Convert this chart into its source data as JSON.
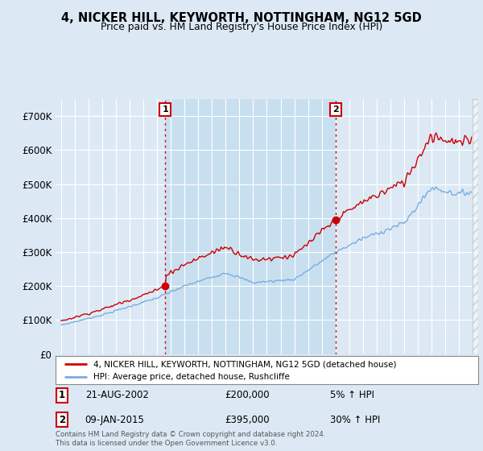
{
  "title": "4, NICKER HILL, KEYWORTH, NOTTINGHAM, NG12 5GD",
  "subtitle": "Price paid vs. HM Land Registry's House Price Index (HPI)",
  "bg_color": "#dce9f5",
  "plot_bg_color": "#dce9f5",
  "plot_bg_highlight": "#c8dff0",
  "grid_color": "#ffffff",
  "sale1_date": "21-AUG-2002",
  "sale1_price": 200000,
  "sale1_label": "1",
  "sale1_hpi_pct": "5% ↑ HPI",
  "sale2_date": "09-JAN-2015",
  "sale2_price": 395000,
  "sale2_label": "2",
  "sale2_hpi_pct": "30% ↑ HPI",
  "legend_house": "4, NICKER HILL, KEYWORTH, NOTTINGHAM, NG12 5GD (detached house)",
  "legend_hpi": "HPI: Average price, detached house, Rushcliffe",
  "footnote": "Contains HM Land Registry data © Crown copyright and database right 2024.\nThis data is licensed under the Open Government Licence v3.0.",
  "house_color": "#cc0000",
  "hpi_color": "#7aade0",
  "dot_color": "#cc0000",
  "ylim_min": 0,
  "ylim_max": 750000,
  "yticks": [
    0,
    100000,
    200000,
    300000,
    400000,
    500000,
    600000,
    700000
  ],
  "ytick_labels": [
    "£0",
    "£100K",
    "£200K",
    "£300K",
    "£400K",
    "£500K",
    "£600K",
    "£700K"
  ],
  "year_start": 1995,
  "year_end": 2025,
  "sale1_t": 2002.583,
  "sale2_t": 2015.0
}
